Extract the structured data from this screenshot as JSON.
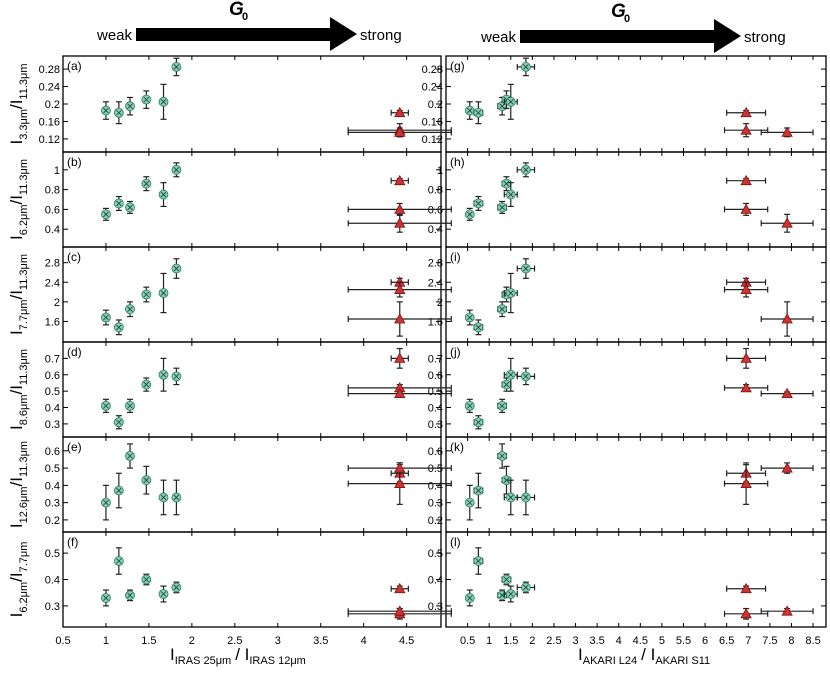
{
  "header": {
    "left": {
      "symbol": "G",
      "subscript": "0",
      "weak": "weak",
      "strong": "strong"
    },
    "right": {
      "symbol": "G",
      "subscript": "0",
      "weak": "weak",
      "strong": "strong"
    }
  },
  "columns": [
    {
      "xlabel_main": "I",
      "xlabel_sub1": "IRAS 25μm",
      "xlabel_sep": "/ I",
      "xlabel_sub2": "IRAS 12μm",
      "xlim": [
        0.5,
        4.9
      ],
      "xticks": [
        "0.5",
        "1",
        "1.5",
        "2",
        "2.5",
        "3",
        "3.5",
        "4",
        "4.5"
      ]
    },
    {
      "xlabel_main": "I",
      "xlabel_sub1": "AKARI L24",
      "xlabel_sep": "/ I",
      "xlabel_sub2": "AKARI S11",
      "xlim": [
        0.0,
        8.8
      ],
      "xticks": [
        "0.5",
        "1",
        "1.5",
        "2",
        "2.5",
        "3",
        "3.5",
        "4",
        "4.5",
        "5",
        "5.5",
        "6",
        "6.5",
        "7",
        "7.5",
        "8",
        "8.5"
      ]
    }
  ],
  "rows": [
    {
      "ylabel_num": "3.3μm",
      "ylabel_den": "11.3μm",
      "ylim": [
        0.09,
        0.31
      ],
      "yticks": [
        "0.12",
        "0.16",
        "0.2",
        "0.24",
        "0.28"
      ],
      "panel_labels": [
        "(a)",
        "(g)"
      ]
    },
    {
      "ylabel_num": "6.2μm",
      "ylabel_den": "11.3μm",
      "ylim": [
        0.22,
        1.18
      ],
      "yticks": [
        "0.4",
        "0.6",
        "0.8",
        "1"
      ],
      "panel_labels": [
        "(b)",
        "(h)"
      ]
    },
    {
      "ylabel_num": "7.7μm",
      "ylabel_den": "11.3μm",
      "ylim": [
        1.18,
        3.12
      ],
      "yticks": [
        "1.6",
        "2",
        "2.4",
        "2.8"
      ],
      "panel_labels": [
        "(c)",
        "(i)"
      ]
    },
    {
      "ylabel_num": "8.6μm",
      "ylabel_den": "11.3μm",
      "ylim": [
        0.22,
        0.8
      ],
      "yticks": [
        "0.3",
        "0.4",
        "0.5",
        "0.6",
        "0.7"
      ],
      "panel_labels": [
        "(d)",
        "(j)"
      ]
    },
    {
      "ylabel_num": "12.6μm",
      "ylabel_den": "11.3μm",
      "ylim": [
        0.13,
        0.68
      ],
      "yticks": [
        "0.2",
        "0.3",
        "0.4",
        "0.5",
        "0.6"
      ],
      "panel_labels": [
        "(e)",
        "(k)"
      ]
    },
    {
      "ylabel_num": "6.2μm",
      "ylabel_den": "7.7μm",
      "ylim": [
        0.22,
        0.58
      ],
      "yticks": [
        "0.3",
        "0.4",
        "0.5"
      ],
      "panel_labels": [
        "(f)",
        "(l)"
      ]
    }
  ],
  "chart_data": {
    "type": "scatter",
    "series": [
      {
        "marker": "circle",
        "color": "#7ed3b6",
        "x_iras": [
          1.0,
          1.15,
          1.28,
          1.47,
          1.67,
          1.82
        ],
        "x_akari": [
          0.55,
          0.75,
          1.3,
          1.4,
          1.5,
          1.85
        ],
        "x_akari_err": [
          0.05,
          0.1,
          0.1,
          0.1,
          0.15,
          0.2
        ],
        "panels": [
          {
            "y": [
              0.185,
              0.18,
              0.195,
              0.21,
              0.205,
              0.285
            ],
            "yerr": [
              0.02,
              0.025,
              0.02,
              0.02,
              0.04,
              0.02
            ]
          },
          {
            "y": [
              0.55,
              0.66,
              0.62,
              0.86,
              0.75,
              1.0
            ],
            "yerr": [
              0.06,
              0.07,
              0.06,
              0.07,
              0.12,
              0.07
            ]
          },
          {
            "y": [
              1.68,
              1.48,
              1.85,
              2.15,
              2.18,
              2.68
            ],
            "yerr": [
              0.15,
              0.15,
              0.15,
              0.15,
              0.4,
              0.2
            ]
          },
          {
            "y": [
              0.41,
              0.31,
              0.41,
              0.54,
              0.6,
              0.59
            ],
            "yerr": [
              0.04,
              0.04,
              0.04,
              0.04,
              0.1,
              0.05
            ]
          },
          {
            "y": [
              0.3,
              0.37,
              0.57,
              0.43,
              0.33,
              0.33
            ],
            "yerr": [
              0.1,
              0.1,
              0.07,
              0.08,
              0.1,
              0.1
            ]
          },
          {
            "y": [
              0.33,
              0.47,
              0.34,
              0.4,
              0.345,
              0.37
            ],
            "yerr": [
              0.03,
              0.05,
              0.02,
              0.02,
              0.03,
              0.02
            ]
          }
        ]
      },
      {
        "marker": "triangle",
        "color": "#cc3333",
        "x_iras": [
          4.42,
          4.42,
          4.42
        ],
        "x_iras_err": [
          0.1,
          0.6,
          0.6
        ],
        "x_akari": [
          6.95,
          6.95,
          7.9
        ],
        "x_akari_err": [
          0.45,
          0.5,
          0.6
        ],
        "panels": [
          {
            "y": [
              0.18,
              0.14,
              0.135
            ],
            "yerr": [
              0.005,
              0.015,
              0.01
            ]
          },
          {
            "y": [
              0.89,
              0.6,
              0.46
            ],
            "yerr": [
              0.02,
              0.06,
              0.09
            ]
          },
          {
            "y": [
              2.4,
              2.25,
              1.65
            ],
            "yerr": [
              0.08,
              0.15,
              0.35
            ]
          },
          {
            "y": [
              0.7,
              0.52,
              0.485
            ],
            "yerr": [
              0.06,
              0.02,
              0.01
            ]
          },
          {
            "y": [
              0.47,
              0.41,
              0.5
            ],
            "yerr": [
              0.05,
              0.12,
              0.03
            ]
          },
          {
            "y": [
              0.365,
              0.27,
              0.28
            ],
            "yerr": [
              0.01,
              0.02,
              0.01
            ]
          }
        ]
      }
    ]
  }
}
